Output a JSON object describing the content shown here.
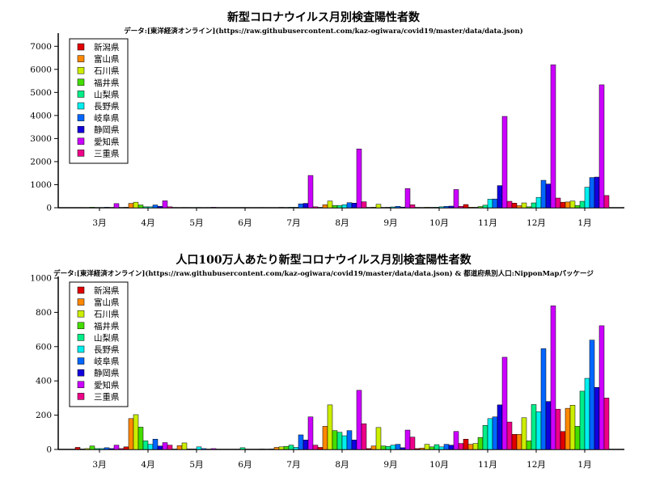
{
  "chart_data": [
    {
      "type": "bar",
      "title": "新型コロナウイルス月別検査陽性者数",
      "subtitle": "データ:[東洋経済オンライン](https://raw.githubusercontent.com/kaz-ogiwara/covid19/master/data/data.json)",
      "xlabel": "",
      "ylabel": "",
      "ylim": [
        0,
        7500
      ],
      "yticks": [
        0,
        1000,
        2000,
        3000,
        4000,
        5000,
        6000,
        7000
      ],
      "grid": false,
      "legend_position": "top-left",
      "categories": [
        "3月",
        "4月",
        "5月",
        "6月",
        "7月",
        "8月",
        "9月",
        "10月",
        "11月",
        "12月",
        "1月"
      ],
      "series": [
        {
          "name": "新潟県",
          "color": "#e00000",
          "values": [
            3,
            18,
            0,
            0,
            2,
            10,
            3,
            10,
            140,
            200,
            240
          ]
        },
        {
          "name": "富山県",
          "color": "#ff8800",
          "values": [
            1,
            190,
            5,
            0,
            8,
            130,
            20,
            8,
            25,
            90,
            250
          ]
        },
        {
          "name": "石川県",
          "color": "#ccee00",
          "values": [
            6,
            240,
            10,
            0,
            15,
            290,
            150,
            20,
            15,
            210,
            290
          ]
        },
        {
          "name": "福井県",
          "color": "#44dd00",
          "values": [
            25,
            120,
            0,
            0,
            10,
            100,
            10,
            15,
            50,
            40,
            100
          ]
        },
        {
          "name": "山梨県",
          "color": "#00ee88",
          "values": [
            5,
            40,
            5,
            10,
            20,
            100,
            15,
            20,
            110,
            210,
            280
          ]
        },
        {
          "name": "長野県",
          "color": "#00eeee",
          "values": [
            5,
            40,
            10,
            0,
            20,
            130,
            35,
            40,
            370,
            450,
            890
          ]
        },
        {
          "name": "岐阜県",
          "color": "#0066ff",
          "values": [
            20,
            120,
            5,
            0,
            170,
            220,
            60,
            60,
            380,
            1190,
            1310
          ]
        },
        {
          "name": "静岡県",
          "color": "#1100dd",
          "values": [
            10,
            60,
            0,
            0,
            190,
            200,
            30,
            70,
            960,
            1030,
            1330
          ]
        },
        {
          "name": "愛知県",
          "color": "#cc00ff",
          "values": [
            180,
            300,
            20,
            10,
            1400,
            2550,
            830,
            790,
            3960,
            6200,
            5330
          ]
        },
        {
          "name": "三重県",
          "color": "#ee0088",
          "values": [
            10,
            40,
            0,
            0,
            40,
            260,
            130,
            60,
            280,
            420,
            530
          ]
        }
      ]
    },
    {
      "type": "bar",
      "title": "人口100万人あたり新型コロナウイルス月別検査陽性者数",
      "subtitle": "データ:[東洋経済オンライン](https://raw.githubusercontent.com/kaz-ogiwara/covid19/master/data/data.json) & 都道府県別人口:NipponMapパッケージ",
      "xlabel": "",
      "ylabel": "",
      "ylim": [
        0,
        1000
      ],
      "yticks": [
        0,
        200,
        400,
        600,
        800,
        1000
      ],
      "grid": false,
      "legend_position": "top-left",
      "categories": [
        "3月",
        "4月",
        "5月",
        "6月",
        "7月",
        "8月",
        "9月",
        "10月",
        "11月",
        "12月",
        "1月"
      ],
      "series": [
        {
          "name": "新潟県",
          "color": "#e00000",
          "values": [
            12,
            15,
            0,
            0,
            2,
            12,
            5,
            5,
            60,
            88,
            105
          ]
        },
        {
          "name": "富山県",
          "color": "#ff8800",
          "values": [
            2,
            180,
            22,
            0,
            12,
            135,
            20,
            8,
            30,
            88,
            240
          ]
        },
        {
          "name": "石川県",
          "color": "#ccee00",
          "values": [
            5,
            203,
            38,
            0,
            15,
            260,
            128,
            30,
            35,
            185,
            258
          ]
        },
        {
          "name": "福井県",
          "color": "#44dd00",
          "values": [
            20,
            130,
            2,
            0,
            18,
            110,
            20,
            15,
            70,
            50,
            135
          ]
        },
        {
          "name": "山梨県",
          "color": "#00ee88",
          "values": [
            5,
            50,
            2,
            10,
            25,
            100,
            18,
            28,
            140,
            262,
            340
          ]
        },
        {
          "name": "長野県",
          "color": "#00eeee",
          "values": [
            5,
            30,
            15,
            0,
            12,
            80,
            25,
            15,
            180,
            220,
            415
          ]
        },
        {
          "name": "岐阜県",
          "color": "#0066ff",
          "values": [
            10,
            60,
            5,
            0,
            85,
            110,
            30,
            30,
            190,
            588,
            638
          ]
        },
        {
          "name": "静岡県",
          "color": "#1100dd",
          "values": [
            5,
            20,
            0,
            0,
            55,
            55,
            10,
            25,
            260,
            280,
            362
          ]
        },
        {
          "name": "愛知県",
          "color": "#cc00ff",
          "values": [
            25,
            40,
            5,
            2,
            190,
            345,
            113,
            105,
            538,
            838,
            722
          ]
        },
        {
          "name": "三重県",
          "color": "#ee0088",
          "values": [
            5,
            25,
            0,
            0,
            25,
            150,
            72,
            35,
            160,
            235,
            300
          ]
        }
      ]
    }
  ]
}
